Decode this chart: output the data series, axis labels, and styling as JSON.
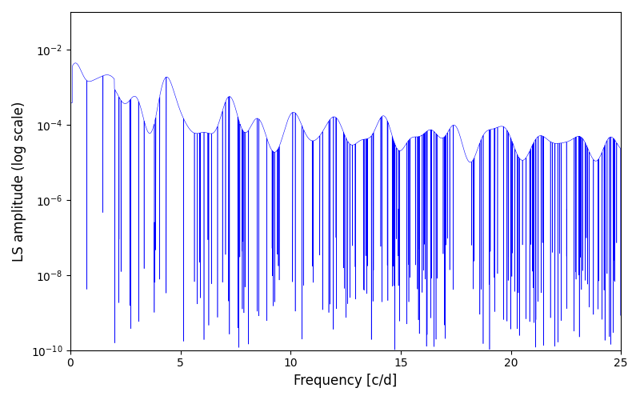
{
  "title": "",
  "xlabel": "Frequency [c/d]",
  "ylabel": "LS amplitude (log scale)",
  "xlim": [
    0,
    25
  ],
  "ylim": [
    1e-10,
    0.1
  ],
  "line_color": "#0000FF",
  "line_width": 0.4,
  "background_color": "#ffffff",
  "figsize": [
    8.0,
    5.0
  ],
  "dpi": 100,
  "freq_max": 25.0,
  "n_points": 8000,
  "seed": 12345
}
